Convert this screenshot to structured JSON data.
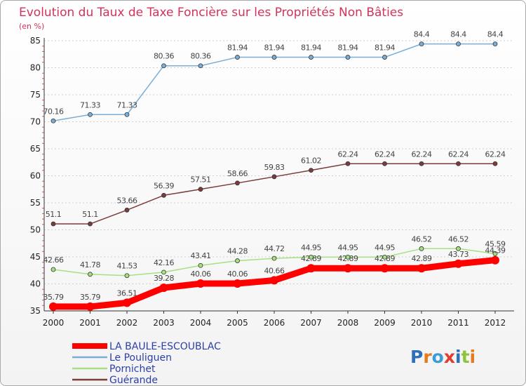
{
  "chart_data": {
    "type": "line",
    "title": "Evolution du Taux de Taxe Foncière sur les Propriétés Non Bâties",
    "subtitle": "(en %)",
    "x": [
      "2000",
      "2001",
      "2002",
      "2003",
      "2004",
      "2005",
      "2006",
      "2007",
      "2008",
      "2009",
      "2010",
      "2011",
      "2012"
    ],
    "ylim": [
      35,
      85
    ],
    "yticks": [
      35,
      40,
      45,
      50,
      55,
      60,
      65,
      70,
      75,
      80,
      85
    ],
    "grid": "horizontal",
    "legend_position": "bottom",
    "series": [
      {
        "name": "LA BAULE-ESCOUBLAC",
        "color": "#ff0000",
        "values": [
          35.79,
          35.79,
          36.51,
          39.28,
          40.06,
          40.06,
          40.66,
          42.89,
          42.89,
          42.89,
          42.89,
          43.73,
          44.39
        ],
        "labels": [
          "35.79",
          "35.79",
          "36.51",
          "39.28",
          "40.06",
          "40.06",
          "40.66",
          "42.89",
          "42.89",
          "42.89",
          "42.89",
          "43.73",
          "44.39"
        ]
      },
      {
        "name": "Le Pouliguen",
        "color": "#7aaed6",
        "values": [
          70.16,
          71.33,
          71.33,
          80.36,
          80.36,
          81.94,
          81.94,
          81.94,
          81.94,
          81.94,
          84.4,
          84.4,
          84.4
        ],
        "labels": [
          "70.16",
          "71.33",
          "71.33",
          "80.36",
          "80.36",
          "81.94",
          "81.94",
          "81.94",
          "81.94",
          "81.94",
          "84.4",
          "84.4",
          "84.4"
        ]
      },
      {
        "name": "Pornichet",
        "color": "#a6e081",
        "values": [
          42.66,
          41.78,
          41.53,
          42.16,
          43.41,
          44.28,
          44.72,
          44.95,
          44.95,
          44.95,
          46.52,
          46.52,
          45.59
        ],
        "labels": [
          "42.66",
          "41.78",
          "41.53",
          "42.16",
          "43.41",
          "44.28",
          "44.72",
          "44.95",
          "44.95",
          "44.95",
          "46.52",
          "46.52",
          "45.59"
        ]
      },
      {
        "name": "Guérande",
        "color": "#7c3c3c",
        "values": [
          51.1,
          51.1,
          53.66,
          56.39,
          57.51,
          58.66,
          59.83,
          61.02,
          62.24,
          62.24,
          62.24,
          62.24,
          62.24
        ],
        "labels": [
          "51.1",
          "51.1",
          "53.66",
          "56.39",
          "57.51",
          "58.66",
          "59.83",
          "61.02",
          "62.24",
          "62.24",
          "62.24",
          "62.24",
          "62.24"
        ]
      }
    ]
  },
  "logo": {
    "text": "Proxiti"
  }
}
